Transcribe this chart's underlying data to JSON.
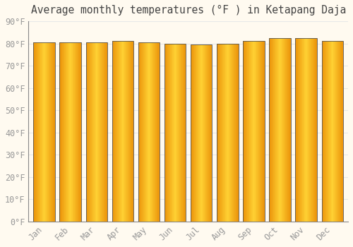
{
  "title": "Average monthly temperatures (°F ) in Ketapang Daja",
  "months": [
    "Jan",
    "Feb",
    "Mar",
    "Apr",
    "May",
    "Jun",
    "Jul",
    "Aug",
    "Sep",
    "Oct",
    "Nov",
    "Dec"
  ],
  "values": [
    80.5,
    80.5,
    80.5,
    81.0,
    80.5,
    80.0,
    79.5,
    80.0,
    81.0,
    82.5,
    82.5,
    81.0
  ],
  "bar_edge_color": "#D4820A",
  "bar_fill_left": "#F5A800",
  "bar_fill_center": "#FFD050",
  "background_color": "#FFFAF0",
  "ylim": [
    0,
    90
  ],
  "ytick_step": 10,
  "grid_color": "#E8E8E8",
  "tick_label_color": "#999999",
  "title_color": "#444444",
  "title_fontsize": 10.5,
  "tick_fontsize": 8.5,
  "bar_width": 0.82
}
